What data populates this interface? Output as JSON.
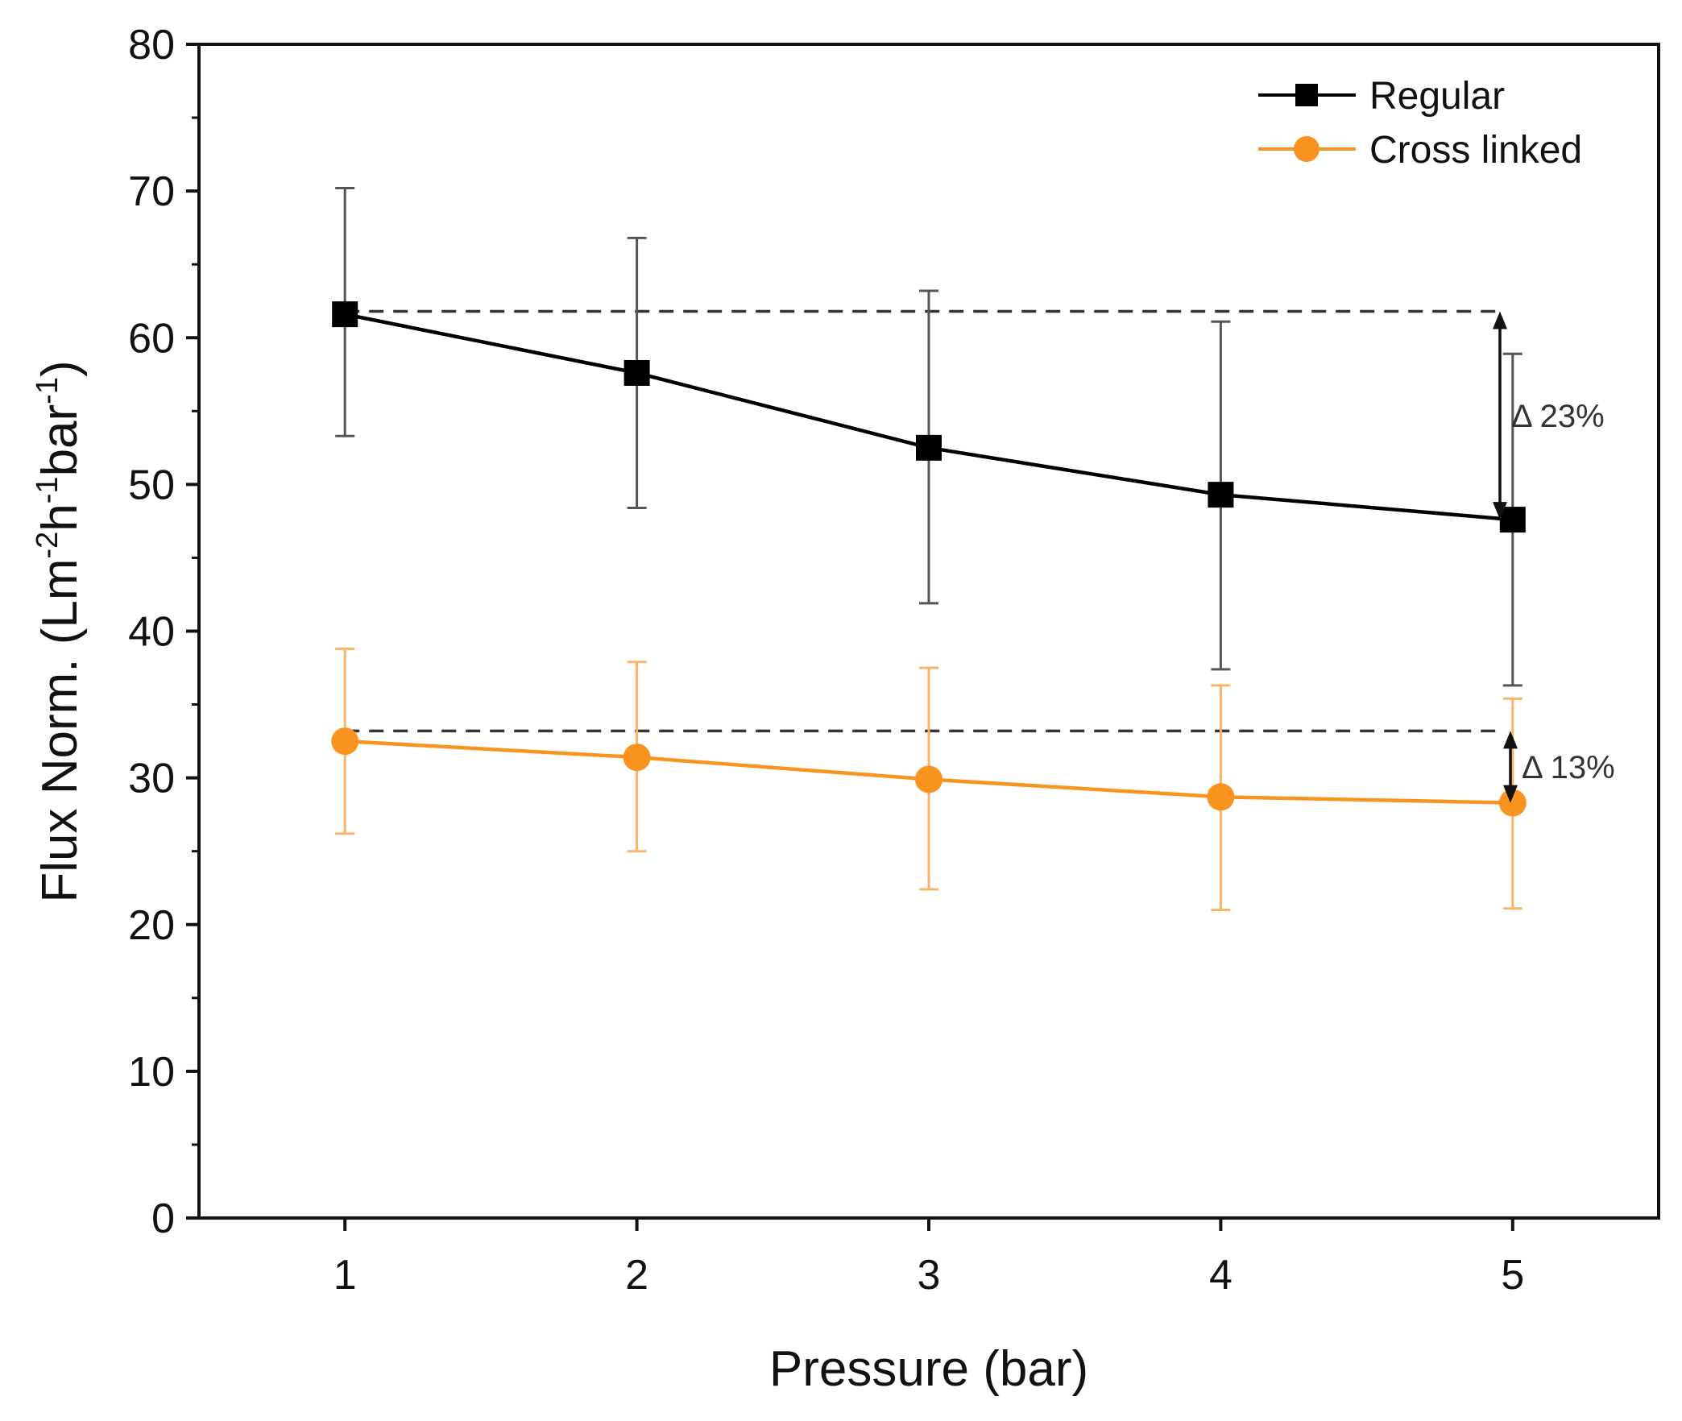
{
  "chart_data": {
    "type": "line",
    "title": "",
    "xlabel": "Pressure (bar)",
    "ylabel": {
      "prefix": "Flux Norm. (Lm",
      "sup1": "-2",
      "mid1": "h",
      "sup2": "-1",
      "mid2": "bar",
      "sup3": "-1",
      "suffix": ")"
    },
    "xlim": [
      0.5,
      5.5
    ],
    "ylim": [
      0,
      80
    ],
    "x_ticks": [
      1,
      2,
      3,
      4,
      5
    ],
    "x_tick_labels": [
      "1",
      "2",
      "3",
      "4",
      "5"
    ],
    "y_ticks": [
      0,
      10,
      20,
      30,
      40,
      50,
      60,
      70,
      80
    ],
    "y_tick_labels": [
      "0",
      "10",
      "20",
      "30",
      "40",
      "50",
      "60",
      "70",
      "80"
    ],
    "grid": false,
    "legend_position": "top-right",
    "series": [
      {
        "name": "Regular",
        "color": "#000000",
        "errorbar_color": "#555555",
        "marker": "square",
        "x": [
          1,
          2,
          3,
          4,
          5
        ],
        "y": [
          61.6,
          57.6,
          52.5,
          49.3,
          47.6
        ],
        "err_low": [
          53.3,
          48.4,
          41.9,
          37.4,
          36.3
        ],
        "err_high": [
          70.2,
          66.8,
          63.2,
          61.1,
          58.9
        ]
      },
      {
        "name": "Cross linked",
        "color": "#f7931e",
        "errorbar_color": "#f9b36a",
        "marker": "circle",
        "x": [
          1,
          2,
          3,
          4,
          5
        ],
        "y": [
          32.5,
          31.4,
          29.9,
          28.7,
          28.3
        ],
        "err_low": [
          26.2,
          25.0,
          22.4,
          21.0,
          21.1
        ],
        "err_high": [
          38.8,
          37.9,
          37.5,
          36.3,
          35.4
        ]
      }
    ],
    "annotations": [
      {
        "text": "Δ 23%",
        "y_from": 61.8,
        "y_to": 47.6,
        "ref_line_y": 61.8
      },
      {
        "text": "Δ 13%",
        "y_from": 33.2,
        "y_to": 28.3,
        "ref_line_y": 33.2
      }
    ]
  }
}
